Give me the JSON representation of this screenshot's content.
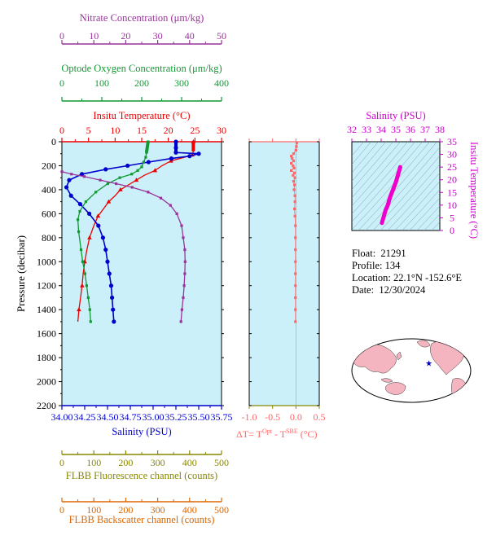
{
  "colors": {
    "nitrate": "#993399",
    "oxygen": "#119933",
    "temperature": "#ee0000",
    "salinity": "#0000cc",
    "delta_t": "#ff6666",
    "fluorescence": "#888800",
    "backscatter": "#dd6600",
    "plot_bg": "#ccf0fa",
    "ts_line": "#ee00cc",
    "ts_title": "#cc00cc"
  },
  "info": {
    "float_label": "Float:",
    "float_value": "21291",
    "profile_label": "Profile:",
    "profile_value": "134",
    "location_label": "Location:",
    "location_value": "22.1°N  -152.6°E",
    "date_label": "Date:",
    "date_value": "12/30/2024"
  },
  "chart_data": [
    {
      "type": "line",
      "panel": "main-profile",
      "ylabel": "Pressure (decibar)",
      "ylim": [
        2200,
        0
      ],
      "yticks": [
        0,
        200,
        400,
        600,
        800,
        1000,
        1200,
        1400,
        1600,
        1800,
        2000,
        2200
      ],
      "grid": false,
      "axes": {
        "nitrate": {
          "label": "Nitrate Concentration (μm/kg)",
          "range": [
            0,
            50
          ],
          "ticks": [
            0,
            10,
            20,
            30,
            40,
            50
          ]
        },
        "oxygen": {
          "label": "Optode Oxygen Concentration (μm/kg)",
          "range": [
            0,
            400
          ],
          "ticks": [
            0,
            100,
            200,
            300,
            400
          ]
        },
        "temperature": {
          "label": "Insitu Temperature (°C)",
          "range": [
            0,
            30
          ],
          "ticks": [
            0,
            5,
            10,
            15,
            20,
            25,
            30
          ]
        },
        "salinity": {
          "label": "Salinity (PSU)",
          "range": [
            34.0,
            35.75
          ],
          "ticks": [
            "34.00",
            "34.25",
            "34.50",
            "34.75",
            "35.00",
            "35.25",
            "35.50",
            "35.75"
          ]
        },
        "fluorescence": {
          "label": "FLBB Fluorescence channel (counts)",
          "range": [
            0,
            500
          ],
          "ticks": [
            0,
            100,
            200,
            300,
            400,
            500
          ]
        },
        "backscatter": {
          "label": "FLBB Backscatter channel (counts)",
          "range": [
            0,
            500
          ],
          "ticks": [
            0,
            100,
            200,
            300,
            400,
            500
          ]
        }
      },
      "series": [
        {
          "name": "Insitu Temperature",
          "axis": "temperature",
          "marker": "triangle",
          "points": [
            [
              24.7,
              0
            ],
            [
              24.7,
              80
            ],
            [
              24.5,
              110
            ],
            [
              23,
              130
            ],
            [
              20.5,
              160
            ],
            [
              18.8,
              200
            ],
            [
              17.5,
              240
            ],
            [
              15.5,
              280
            ],
            [
              14,
              320
            ],
            [
              12.5,
              360
            ],
            [
              11,
              400
            ],
            [
              10,
              450
            ],
            [
              8.8,
              500
            ],
            [
              7.8,
              560
            ],
            [
              6.8,
              620
            ],
            [
              6,
              700
            ],
            [
              5.2,
              800
            ],
            [
              4.7,
              900
            ],
            [
              4.3,
              1000
            ],
            [
              4,
              1100
            ],
            [
              3.8,
              1200
            ],
            [
              3.5,
              1300
            ],
            [
              3.2,
              1400
            ],
            [
              3,
              1500
            ]
          ]
        },
        {
          "name": "Salinity",
          "axis": "salinity",
          "marker": "circle",
          "points": [
            [
              35.25,
              0
            ],
            [
              35.25,
              50
            ],
            [
              35.25,
              90
            ],
            [
              35.5,
              100
            ],
            [
              35.4,
              120
            ],
            [
              35.2,
              140
            ],
            [
              34.95,
              170
            ],
            [
              34.72,
              200
            ],
            [
              34.48,
              230
            ],
            [
              34.22,
              270
            ],
            [
              34.08,
              320
            ],
            [
              34.05,
              380
            ],
            [
              34.1,
              450
            ],
            [
              34.2,
              520
            ],
            [
              34.3,
              600
            ],
            [
              34.4,
              700
            ],
            [
              34.45,
              800
            ],
            [
              34.48,
              900
            ],
            [
              34.5,
              1000
            ],
            [
              34.52,
              1100
            ],
            [
              34.54,
              1200
            ],
            [
              34.55,
              1300
            ],
            [
              34.56,
              1400
            ],
            [
              34.57,
              1500
            ]
          ]
        },
        {
          "name": "Optode Oxygen",
          "axis": "oxygen",
          "marker": "square",
          "points": [
            [
              216,
              0
            ],
            [
              212,
              90
            ],
            [
              210,
              130
            ],
            [
              205,
              170
            ],
            [
              200,
              210
            ],
            [
              190,
              240
            ],
            [
              175,
              270
            ],
            [
              145,
              300
            ],
            [
              115,
              350
            ],
            [
              85,
              420
            ],
            [
              60,
              500
            ],
            [
              45,
              580
            ],
            [
              40,
              650
            ],
            [
              42,
              750
            ],
            [
              48,
              900
            ],
            [
              52,
              1000
            ],
            [
              58,
              1100
            ],
            [
              62,
              1200
            ],
            [
              66,
              1300
            ],
            [
              70,
              1400
            ],
            [
              72,
              1500
            ]
          ]
        },
        {
          "name": "Nitrate",
          "axis": "nitrate",
          "marker": "square",
          "points": [
            [
              0,
              250
            ],
            [
              3,
              270
            ],
            [
              7,
              290
            ],
            [
              12,
              320
            ],
            [
              17,
              350
            ],
            [
              22,
              380
            ],
            [
              27,
              420
            ],
            [
              31,
              470
            ],
            [
              34,
              530
            ],
            [
              36,
              600
            ],
            [
              37.5,
              700
            ],
            [
              38,
              800
            ],
            [
              38.5,
              900
            ],
            [
              38.6,
              1000
            ],
            [
              38.5,
              1100
            ],
            [
              38.3,
              1200
            ],
            [
              38,
              1300
            ],
            [
              37.6,
              1400
            ],
            [
              37.3,
              1500
            ]
          ]
        }
      ]
    },
    {
      "type": "scatter",
      "panel": "delta-t",
      "xlabel": "ΔT= T",
      "xlabel_sup1": "Opt",
      "xlabel_mid": " - T",
      "xlabel_sup2": "SBE",
      "xlabel_unit": " (°C)",
      "xlim": [
        -1.0,
        0.5
      ],
      "xticks": [
        "-1.0",
        "-0.5",
        "0.0",
        "0.5"
      ],
      "ylim": [
        2200,
        0
      ],
      "points": [
        [
          0.02,
          10
        ],
        [
          0.01,
          40
        ],
        [
          0.0,
          70
        ],
        [
          -0.05,
          100
        ],
        [
          -0.1,
          120
        ],
        [
          -0.08,
          140
        ],
        [
          -0.05,
          160
        ],
        [
          -0.1,
          180
        ],
        [
          -0.06,
          200
        ],
        [
          -0.04,
          220
        ],
        [
          -0.1,
          240
        ],
        [
          -0.03,
          260
        ],
        [
          -0.06,
          280
        ],
        [
          -0.02,
          300
        ],
        [
          -0.05,
          330
        ],
        [
          -0.03,
          360
        ],
        [
          -0.04,
          400
        ],
        [
          -0.02,
          450
        ],
        [
          -0.02,
          500
        ],
        [
          -0.03,
          560
        ],
        [
          -0.02,
          620
        ],
        [
          -0.01,
          700
        ],
        [
          -0.01,
          800
        ],
        [
          -0.01,
          900
        ],
        [
          -0.01,
          1000
        ],
        [
          -0.01,
          1100
        ],
        [
          -0.01,
          1200
        ],
        [
          -0.01,
          1300
        ],
        [
          -0.01,
          1400
        ],
        [
          -0.01,
          1500
        ]
      ]
    },
    {
      "type": "line",
      "panel": "ts-diagram",
      "title": "Salinity (PSU)",
      "xlim": [
        32,
        38
      ],
      "xticks": [
        "32",
        "33",
        "34",
        "35",
        "36",
        "37",
        "38"
      ],
      "ylabel": "Insitu Temperature (°C)",
      "ylim": [
        0,
        35
      ],
      "yticks": [
        "0",
        "5",
        "10",
        "15",
        "20",
        "25",
        "30",
        "35"
      ],
      "points": [
        [
          34.05,
          3
        ],
        [
          34.1,
          4
        ],
        [
          34.2,
          6
        ],
        [
          34.3,
          8
        ],
        [
          34.45,
          10
        ],
        [
          34.6,
          13
        ],
        [
          34.8,
          16
        ],
        [
          35.0,
          19
        ],
        [
          35.15,
          22
        ],
        [
          35.25,
          24
        ],
        [
          35.3,
          25
        ]
      ]
    },
    {
      "type": "map",
      "panel": "world-map",
      "marker": [
        -152.6,
        22.1
      ]
    }
  ]
}
